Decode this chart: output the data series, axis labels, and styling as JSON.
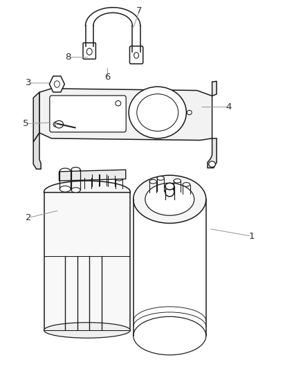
{
  "bg_color": "#ffffff",
  "line_color": "#1a1a1a",
  "label_color": "#2a2a2a",
  "leader_color": "#999999",
  "lw": 1.1,
  "labels_info": [
    [
      7,
      0.46,
      0.97,
      0.438,
      0.92
    ],
    [
      8,
      0.225,
      0.845,
      0.295,
      0.845
    ],
    [
      3,
      0.095,
      0.775,
      0.168,
      0.775
    ],
    [
      6,
      0.355,
      0.79,
      0.355,
      0.82
    ],
    [
      4,
      0.755,
      0.71,
      0.66,
      0.71
    ],
    [
      5,
      0.085,
      0.665,
      0.175,
      0.668
    ],
    [
      2,
      0.095,
      0.41,
      0.195,
      0.43
    ],
    [
      1,
      0.83,
      0.36,
      0.69,
      0.38
    ]
  ]
}
